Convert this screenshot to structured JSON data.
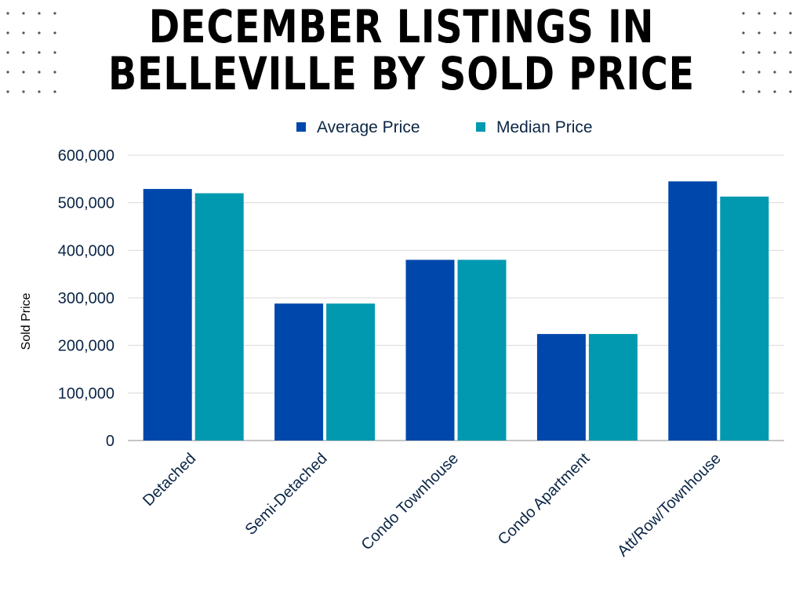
{
  "header": {
    "title_line1": "DECEMBER LISTINGS IN",
    "title_line2": "BELLEVILLE BY SOLD PRICE"
  },
  "colors": {
    "average": "#0047AB",
    "median": "#0099B0",
    "text": "#0B2545",
    "grid": "#D9D9D9",
    "dots": "#555555"
  },
  "chart_data": {
    "type": "bar",
    "title": "DECEMBER LISTINGS IN BELLEVILLE BY SOLD PRICE",
    "categories": [
      "Detached",
      "Semi-Detached",
      "Condo Townhouse",
      "Condo Apartment",
      "Att/Row/Townhouse"
    ],
    "series": [
      {
        "name": "Average Price",
        "values": [
          529000,
          288000,
          380000,
          224000,
          545000
        ]
      },
      {
        "name": "Median Price",
        "values": [
          520000,
          288000,
          380000,
          224000,
          513000
        ]
      }
    ],
    "xlabel": "",
    "ylabel": "Sold Price",
    "ylim": [
      0,
      600000
    ],
    "yticks": [
      "0",
      "100,000",
      "200,000",
      "300,000",
      "400,000",
      "500,000",
      "600,000"
    ],
    "grid": true,
    "legend": "top-center"
  }
}
